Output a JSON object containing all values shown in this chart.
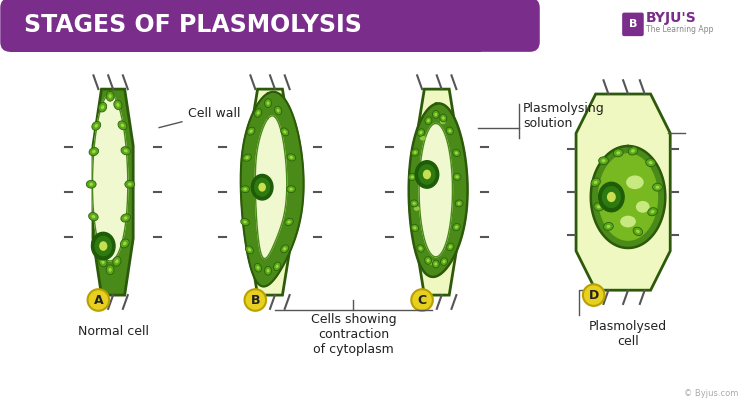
{
  "title": "STAGES OF PLASMOLYSIS",
  "title_bg_color": "#7B2D8B",
  "title_text_color": "#FFFFFF",
  "bg_color": "#FFFFFF",
  "cell_wall_green": "#4a8a18",
  "cell_wall_dark": "#2d5a0a",
  "cell_fill_light": "#eef8c0",
  "cytoplasm_green": "#5a9a18",
  "vacuole_light": "#f0f8d0",
  "nucleus_dark": "#1e5c08",
  "nucleus_mid": "#2e7a10",
  "nucleus_light": "#c8e050",
  "chloro_green": "#5aaa18",
  "chloro_dark": "#2d6010",
  "chloro_light": "#a0d840",
  "label_badge_color": "#e8d020",
  "label_badge_edge": "#b8a000",
  "annotation_cell_wall": "Cell wall",
  "annotation_plasmolysing": "Plasmolysing\nsolution",
  "annotation_normal": "Normal cell",
  "annotation_contraction": "Cells showing\ncontraction\nof cytoplasm",
  "annotation_plasmolysed": "Plasmolysed\ncell",
  "copyright": "© Byjus.com",
  "byju_color": "#7B2D8B"
}
